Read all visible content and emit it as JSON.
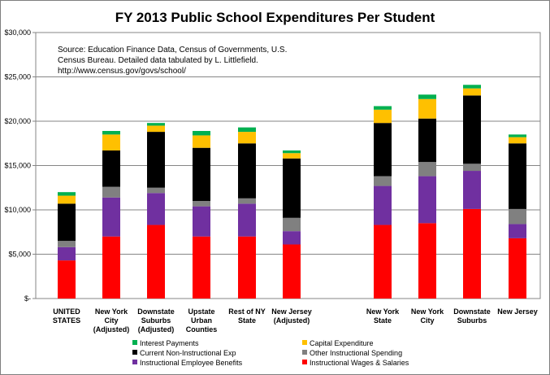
{
  "chart_data": {
    "type": "bar",
    "stacked": true,
    "title": "FY 2013 Public School Expenditures Per Student",
    "source_note": [
      "Source:  Education Finance Data, Census of Governments, U.S.",
      "Census Bureau.  Detailed data tabulated by L. Littlefield.",
      "http://www.census.gov/govs/school/"
    ],
    "ylim": [
      0,
      30000
    ],
    "y_ticks": [
      "$-",
      "$5,000",
      "$10,000",
      "$15,000",
      "$20,000",
      "$25,000",
      "$30,000"
    ],
    "grid": true,
    "legend_position": "bottom",
    "categories": [
      [
        "UNITED",
        "STATES"
      ],
      [
        "New York",
        "City",
        "(Adjusted)"
      ],
      [
        "Downstate",
        "Suburbs",
        "(Adjusted)"
      ],
      [
        "Upstate",
        "Urban",
        "Counties"
      ],
      [
        "Rest of NY",
        "State"
      ],
      [
        "New Jersey",
        "(Adjusted)"
      ],
      [
        "New York",
        "State"
      ],
      [
        "New York",
        "City"
      ],
      [
        "Downstate",
        "Suburbs"
      ],
      [
        "New Jersey"
      ]
    ],
    "series": [
      {
        "name": "Instructional Wages & Salaries",
        "color": "#ff0000",
        "values": [
          4300,
          7000,
          8300,
          7000,
          7000,
          6100,
          8300,
          8500,
          10100,
          6800
        ]
      },
      {
        "name": "Instructional Employee Benefits",
        "color": "#7030a0",
        "values": [
          1500,
          4400,
          3600,
          3400,
          3700,
          1500,
          4400,
          5300,
          4300,
          1600
        ]
      },
      {
        "name": "Other Instructional Spending",
        "color": "#808080",
        "values": [
          700,
          1200,
          600,
          600,
          600,
          1500,
          1100,
          1600,
          800,
          1700
        ]
      },
      {
        "name": "Current Non-Instructional Exp",
        "color": "#000000",
        "values": [
          4200,
          4100,
          6300,
          6000,
          6200,
          6700,
          6000,
          4900,
          7700,
          7400
        ]
      },
      {
        "name": "Capital Expenditure",
        "color": "#ffc000",
        "values": [
          900,
          1800,
          700,
          1400,
          1300,
          600,
          1500,
          2200,
          800,
          700
        ]
      },
      {
        "name": "Interest Payments",
        "color": "#00b050",
        "values": [
          400,
          400,
          300,
          500,
          500,
          300,
          400,
          500,
          400,
          300
        ]
      }
    ],
    "legend_rows": [
      [
        "Interest Payments",
        "Capital Expenditure"
      ],
      [
        "Current Non-Instructional Exp",
        "Other Instructional Spending"
      ],
      [
        "Instructional Employee Benefits",
        "Instructional Wages & Salaries"
      ]
    ]
  }
}
